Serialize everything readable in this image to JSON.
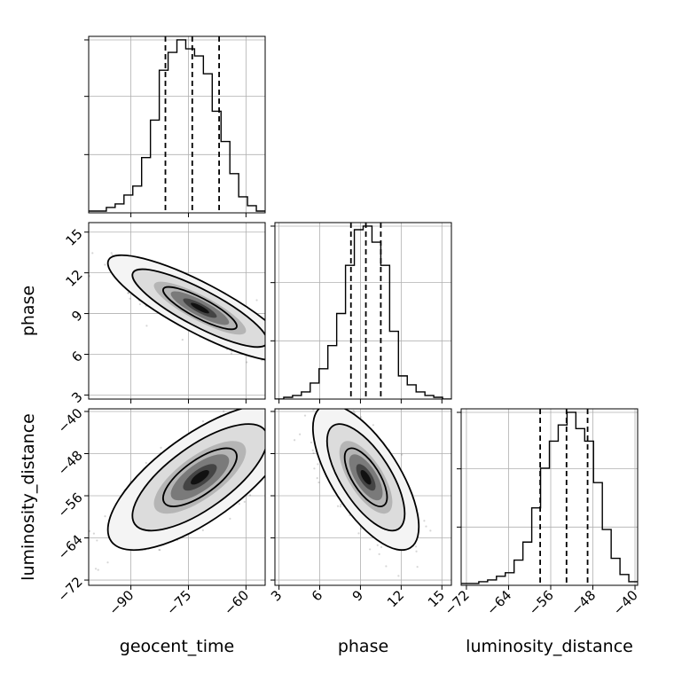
{
  "chart_data": {
    "type": "corner",
    "parameters": [
      "geocent_time",
      "phase",
      "luminosity_distance"
    ],
    "axis_labels": {
      "geocent_time": "geocent_time",
      "phase": "phase",
      "luminosity_distance": "luminosity_distance"
    },
    "ranges": {
      "geocent_time": [
        -101,
        -55
      ],
      "phase": [
        2.7,
        15.7
      ],
      "luminosity_distance": [
        -73,
        -39.5
      ]
    },
    "ticks": {
      "geocent_time": [
        -90,
        -75,
        -60
      ],
      "phase": [
        3,
        6,
        9,
        12,
        15
      ],
      "luminosity_distance": [
        -72,
        -64,
        -56,
        -48,
        -40
      ]
    },
    "tick_labels": {
      "geocent_time": [
        "−90",
        "−75",
        "−60"
      ],
      "phase": [
        "3",
        "6",
        "9",
        "12",
        "15"
      ],
      "luminosity_distance": [
        "−72",
        "−64",
        "−56",
        "−48",
        "−40"
      ]
    },
    "grid": true,
    "histograms": {
      "geocent_time": {
        "bins": 20,
        "counts": [
          1,
          1,
          3,
          5,
          10,
          15,
          31,
          52,
          80,
          90,
          97,
          92,
          88,
          78,
          57,
          40,
          22,
          9,
          4,
          1
        ],
        "quantiles": [
          -81,
          -74,
          -67
        ]
      },
      "phase": {
        "bins": 20,
        "counts": [
          0,
          1,
          2,
          4,
          9,
          17,
          30,
          48,
          75,
          95,
          97,
          88,
          75,
          38,
          13,
          8,
          4,
          2,
          1,
          0
        ],
        "quantiles": [
          8.3,
          9.4,
          10.5
        ]
      },
      "luminosity_distance": {
        "bins": 20,
        "counts": [
          1,
          1,
          2,
          3,
          5,
          7,
          14,
          24,
          43,
          65,
          80,
          89,
          96,
          87,
          80,
          57,
          31,
          15,
          6,
          2
        ],
        "quantiles": [
          -58,
          -53,
          -49
        ]
      }
    },
    "pairs": [
      {
        "x": "geocent_time",
        "y": "phase",
        "mean": [
          -72,
          9.4
        ],
        "sd": [
          8,
          1.3
        ],
        "corr": -0.85
      },
      {
        "x": "geocent_time",
        "y": "luminosity_distance",
        "mean": [
          -72,
          -52.5
        ],
        "sd": [
          8,
          4.6
        ],
        "corr": 0.72
      },
      {
        "x": "phase",
        "y": "luminosity_distance",
        "mean": [
          9.4,
          -52.5
        ],
        "sd": [
          1.3,
          4.6
        ],
        "corr": -0.68
      }
    ]
  }
}
